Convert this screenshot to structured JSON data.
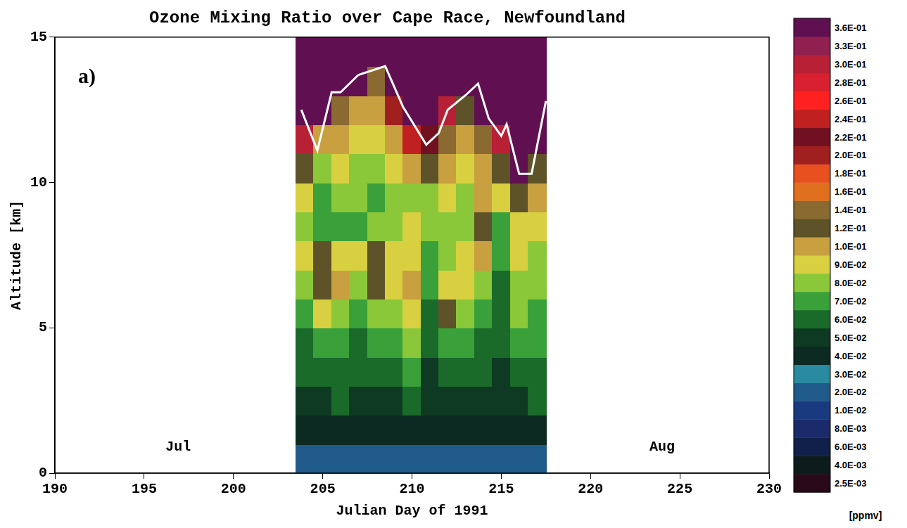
{
  "chart_data": {
    "type": "contour",
    "title": "Ozone Mixing Ratio over Cape Race, Newfoundland",
    "x_label": "Julian Day of 1991",
    "y_label": "Altitude [km]",
    "xlim": [
      190,
      230
    ],
    "xticks": [
      190,
      195,
      200,
      205,
      210,
      215,
      220,
      225,
      230
    ],
    "ylim": [
      0,
      15
    ],
    "yticks": [
      0,
      5,
      10,
      15
    ],
    "grid": false,
    "annotations": [
      {
        "text": "a)",
        "x": 191.3,
        "y": 13.6
      },
      {
        "text": "Jul",
        "x": 196.2,
        "y": 0.9
      },
      {
        "text": "Aug",
        "x": 223.3,
        "y": 0.9
      }
    ],
    "cells": {
      "x": [
        204,
        205,
        206,
        207,
        208,
        209,
        210,
        211,
        212,
        213,
        214,
        215,
        216,
        217
      ],
      "y": [
        0.5,
        1.5,
        2.5,
        3.5,
        4.5,
        5.5,
        6.5,
        7.5,
        8.5,
        9.5,
        10.5,
        11.5,
        12.5,
        13.5,
        14.5
      ],
      "values": [
        [
          0.025,
          0.045,
          0.055,
          0.06,
          0.065,
          0.07,
          0.08,
          0.09,
          0.085,
          0.09,
          0.12,
          0.3,
          0.37,
          0.37,
          0.37
        ],
        [
          0.025,
          0.045,
          0.055,
          0.065,
          0.075,
          0.09,
          0.12,
          0.13,
          0.07,
          0.075,
          0.085,
          0.1,
          0.37,
          0.37,
          0.37
        ],
        [
          0.028,
          0.045,
          0.06,
          0.065,
          0.07,
          0.085,
          0.11,
          0.09,
          0.075,
          0.08,
          0.09,
          0.1,
          0.15,
          0.37,
          0.37
        ],
        [
          0.025,
          0.04,
          0.055,
          0.06,
          0.065,
          0.075,
          0.085,
          0.09,
          0.075,
          0.08,
          0.085,
          0.09,
          0.11,
          0.37,
          0.37
        ],
        [
          0.025,
          0.045,
          0.055,
          0.06,
          0.07,
          0.08,
          0.12,
          0.13,
          0.085,
          0.075,
          0.085,
          0.09,
          0.1,
          0.14,
          0.37
        ],
        [
          0.025,
          0.045,
          0.055,
          0.065,
          0.075,
          0.085,
          0.095,
          0.09,
          0.085,
          0.08,
          0.09,
          0.1,
          0.2,
          0.37,
          0.37
        ],
        [
          0.028,
          0.045,
          0.06,
          0.07,
          0.08,
          0.09,
          0.1,
          0.095,
          0.09,
          0.085,
          0.11,
          0.25,
          0.37,
          0.37,
          0.37
        ],
        [
          0.025,
          0.04,
          0.05,
          0.055,
          0.06,
          0.065,
          0.07,
          0.075,
          0.08,
          0.085,
          0.13,
          0.22,
          0.37,
          0.37,
          0.37
        ],
        [
          0.022,
          0.04,
          0.05,
          0.06,
          0.075,
          0.12,
          0.09,
          0.08,
          0.085,
          0.09,
          0.1,
          0.14,
          0.3,
          0.37,
          0.37
        ],
        [
          0.022,
          0.045,
          0.055,
          0.065,
          0.075,
          0.085,
          0.09,
          0.095,
          0.085,
          0.08,
          0.09,
          0.1,
          0.12,
          0.37,
          0.37
        ],
        [
          0.025,
          0.045,
          0.055,
          0.06,
          0.065,
          0.07,
          0.085,
          0.1,
          0.12,
          0.11,
          0.11,
          0.15,
          0.37,
          0.37,
          0.37
        ],
        [
          0.025,
          0.04,
          0.05,
          0.055,
          0.06,
          0.065,
          0.065,
          0.07,
          0.075,
          0.09,
          0.12,
          0.3,
          0.37,
          0.37,
          0.37
        ],
        [
          0.022,
          0.04,
          0.05,
          0.06,
          0.07,
          0.08,
          0.085,
          0.09,
          0.09,
          0.12,
          0.37,
          0.37,
          0.37,
          0.37,
          0.37
        ],
        [
          0.028,
          0.045,
          0.06,
          0.065,
          0.07,
          0.075,
          0.08,
          0.085,
          0.09,
          0.1,
          0.12,
          0.37,
          0.37,
          0.37,
          0.37
        ]
      ]
    },
    "colorbar": {
      "label": "[ppmv]",
      "levels": [
        {
          "value": 0.0025,
          "label": "2.5E-03"
        },
        {
          "value": 0.004,
          "label": "4.0E-03"
        },
        {
          "value": 0.006,
          "label": "6.0E-03"
        },
        {
          "value": 0.008,
          "label": "8.0E-03"
        },
        {
          "value": 0.01,
          "label": "1.0E-02"
        },
        {
          "value": 0.02,
          "label": "2.0E-02"
        },
        {
          "value": 0.03,
          "label": "3.0E-02"
        },
        {
          "value": 0.04,
          "label": "4.0E-02"
        },
        {
          "value": 0.05,
          "label": "5.0E-02"
        },
        {
          "value": 0.06,
          "label": "6.0E-02"
        },
        {
          "value": 0.07,
          "label": "7.0E-02"
        },
        {
          "value": 0.08,
          "label": "8.0E-02"
        },
        {
          "value": 0.09,
          "label": "9.0E-02"
        },
        {
          "value": 0.1,
          "label": "1.0E-01"
        },
        {
          "value": 0.12,
          "label": "1.2E-01"
        },
        {
          "value": 0.14,
          "label": "1.4E-01"
        },
        {
          "value": 0.16,
          "label": "1.6E-01"
        },
        {
          "value": 0.18,
          "label": "1.8E-01"
        },
        {
          "value": 0.2,
          "label": "2.0E-01"
        },
        {
          "value": 0.22,
          "label": "2.2E-01"
        },
        {
          "value": 0.24,
          "label": "2.4E-01"
        },
        {
          "value": 0.26,
          "label": "2.6E-01"
        },
        {
          "value": 0.28,
          "label": "2.8E-01"
        },
        {
          "value": 0.3,
          "label": "3.0E-01"
        },
        {
          "value": 0.33,
          "label": "3.3E-01"
        },
        {
          "value": 0.36,
          "label": "3.6E-01"
        }
      ],
      "colors": [
        "#2a0a18",
        "#0c1c1c",
        "#10204a",
        "#1a2a6a",
        "#1a3a80",
        "#1f5a8a",
        "#2a8aa0",
        "#0c2a22",
        "#0e3a24",
        "#1a6a2a",
        "#3aa03a",
        "#8ac83a",
        "#d8d040",
        "#c8a040",
        "#5e5228",
        "#8a6a30",
        "#e07020",
        "#e85020",
        "#a02020",
        "#701020",
        "#c02020",
        "#ff2020",
        "#d82030",
        "#b82035",
        "#902050",
        "#601050"
      ]
    },
    "series": [
      {
        "color": "#ffffff",
        "line_style": "solid",
        "x": [
          203.8,
          204.7,
          205.5,
          206.0,
          207.0,
          208.0,
          208.5,
          209.5,
          210.8,
          211.5,
          212.0,
          213.0,
          213.7,
          214.3,
          215.0,
          215.3,
          216.0,
          216.7,
          217.5
        ],
        "values": [
          12.5,
          11.1,
          13.1,
          13.1,
          13.7,
          13.9,
          14.0,
          12.6,
          11.3,
          11.7,
          12.5,
          13.0,
          13.4,
          12.2,
          11.6,
          12.0,
          10.3,
          10.3,
          12.8
        ]
      }
    ]
  }
}
